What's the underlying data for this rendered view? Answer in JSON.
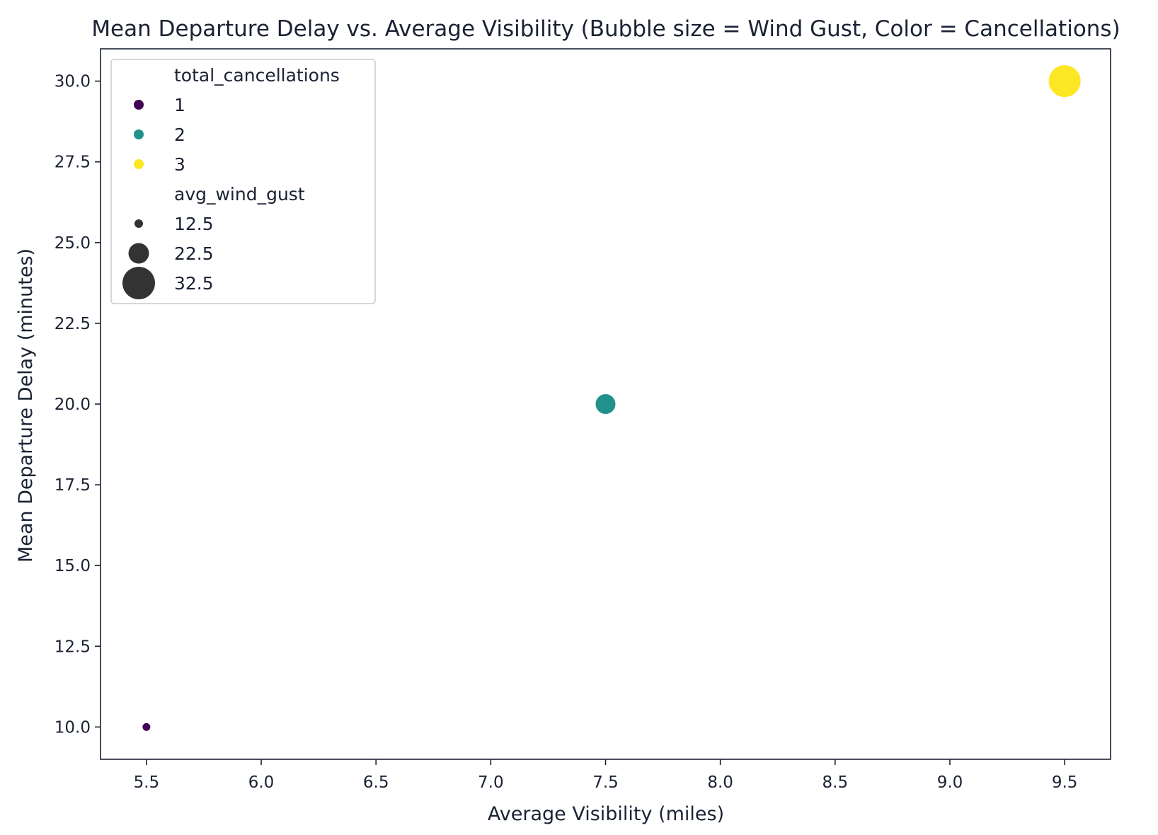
{
  "chart_data": {
    "type": "scatter",
    "title": "Mean Departure Delay vs. Average Visibility (Bubble size = Wind Gust, Color = Cancellations)",
    "xlabel": "Average Visibility (miles)",
    "ylabel": "Mean Departure Delay (minutes)",
    "xlim": [
      5.3,
      9.7
    ],
    "ylim": [
      9.0,
      31.0
    ],
    "xticks": [
      "5.5",
      "6.0",
      "6.5",
      "7.0",
      "7.5",
      "8.0",
      "8.5",
      "9.0",
      "9.5"
    ],
    "yticks": [
      "10.0",
      "12.5",
      "15.0",
      "17.5",
      "20.0",
      "22.5",
      "25.0",
      "27.5",
      "30.0"
    ],
    "grid": false,
    "legend_position": "top-left",
    "points": [
      {
        "x": 5.5,
        "y": 10.0,
        "total_cancellations": 1,
        "avg_wind_gust": 12.5
      },
      {
        "x": 7.5,
        "y": 20.0,
        "total_cancellations": 2,
        "avg_wind_gust": 22.5
      },
      {
        "x": 9.5,
        "y": 30.0,
        "total_cancellations": 3,
        "avg_wind_gust": 32.5
      }
    ],
    "legend": {
      "hue_title": "total_cancellations",
      "hue_entries": [
        {
          "label": "1",
          "color": "#440154"
        },
        {
          "label": "2",
          "color": "#21918c"
        },
        {
          "label": "3",
          "color": "#fde725"
        }
      ],
      "size_title": "avg_wind_gust",
      "size_entries": [
        {
          "label": "12.5",
          "value": 12.5
        },
        {
          "label": "22.5",
          "value": 22.5
        },
        {
          "label": "32.5",
          "value": 32.5
        }
      ]
    },
    "colors": {
      "axis": "#1a2233",
      "size_marker": "#333333"
    }
  }
}
